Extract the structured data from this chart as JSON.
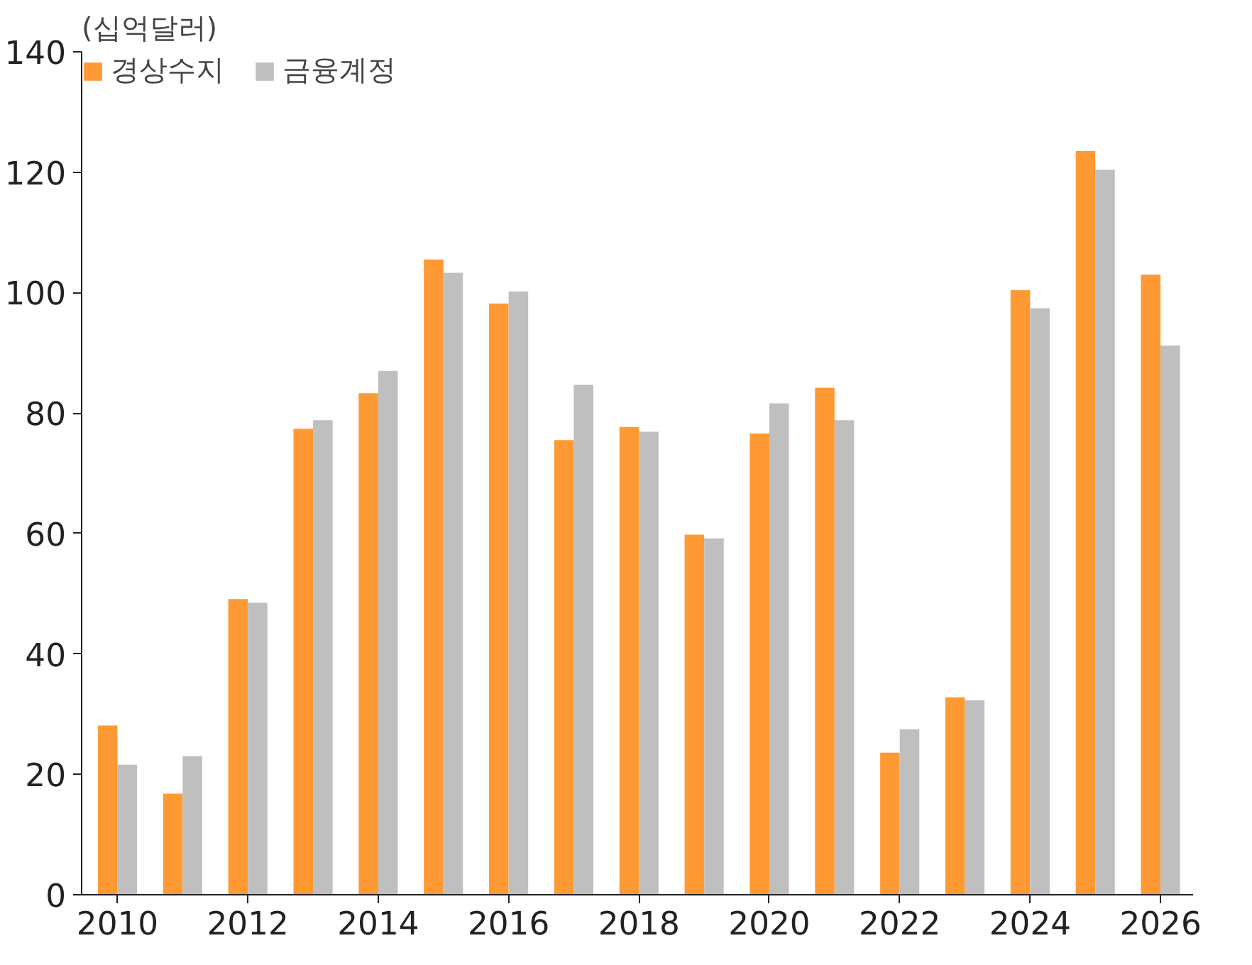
{
  "chart_data": {
    "type": "bar",
    "ylabel": "(십억달러)",
    "x": [
      2010,
      2011,
      2012,
      2013,
      2014,
      2015,
      2016,
      2017,
      2018,
      2019,
      2020,
      2021,
      2022,
      2023,
      2024,
      2025,
      2026
    ],
    "series": [
      {
        "name": "경상수지",
        "color": "#ff9933",
        "values": [
          28.1,
          16.8,
          49.1,
          77.4,
          83.3,
          105.5,
          98.2,
          75.5,
          77.7,
          59.8,
          76.6,
          84.2,
          23.6,
          32.8,
          100.4,
          123.5,
          103.0
        ]
      },
      {
        "name": "금융계정",
        "color": "#bfbfbf",
        "values": [
          21.6,
          23.0,
          48.5,
          78.8,
          87.0,
          103.3,
          100.2,
          84.7,
          76.9,
          59.2,
          81.6,
          78.8,
          27.5,
          32.3,
          97.4,
          120.4,
          91.2
        ]
      }
    ],
    "xlim": [
      2009.45,
      2026.5
    ],
    "xticks": [
      2010,
      2012,
      2014,
      2016,
      2018,
      2020,
      2022,
      2024,
      2026
    ],
    "ylim": [
      0,
      140
    ],
    "yticks": [
      0,
      20,
      40,
      60,
      80,
      100,
      120,
      140
    ],
    "grid": false,
    "legend": "top left"
  }
}
